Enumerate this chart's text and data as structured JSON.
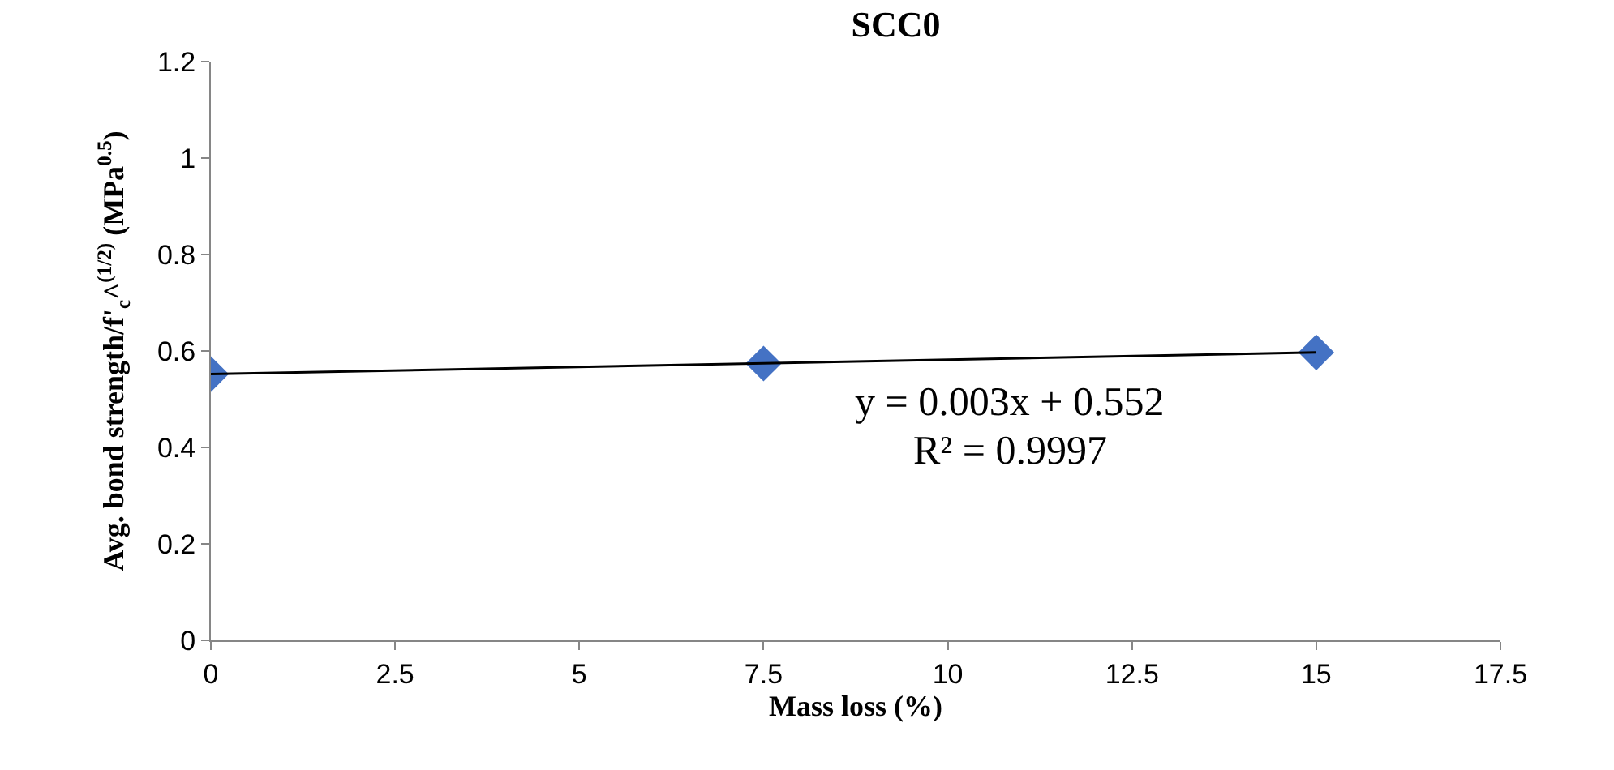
{
  "chart_data": {
    "type": "scatter",
    "title": "SCC0",
    "xlabel": "Mass loss (%)",
    "ylabel": "Avg. bond strength/f'$_{c}$^$^{(1/2)}$ (MPa$^{0.5}$)",
    "x": [
      0,
      7.5,
      15
    ],
    "marker": "diamond",
    "series": [
      {
        "color": "#4472c4",
        "values": [
          0.552,
          0.574,
          0.597
        ]
      },
      {
        "type": "line",
        "color": "#000000",
        "x": [
          0,
          15
        ],
        "values": [
          0.552,
          0.597
        ],
        "marker": "none"
      }
    ],
    "annotations": [
      "y = 0.003x + 0.552",
      "R² = 0.9997"
    ],
    "xlim": [
      0,
      17.5
    ],
    "xticks": [
      0,
      2.5,
      5,
      7.5,
      10,
      12.5,
      15,
      17.5
    ],
    "ylim": [
      0,
      1.2
    ],
    "yticks": [
      0,
      0.2,
      0.4,
      0.6,
      0.8,
      1,
      1.2
    ]
  }
}
